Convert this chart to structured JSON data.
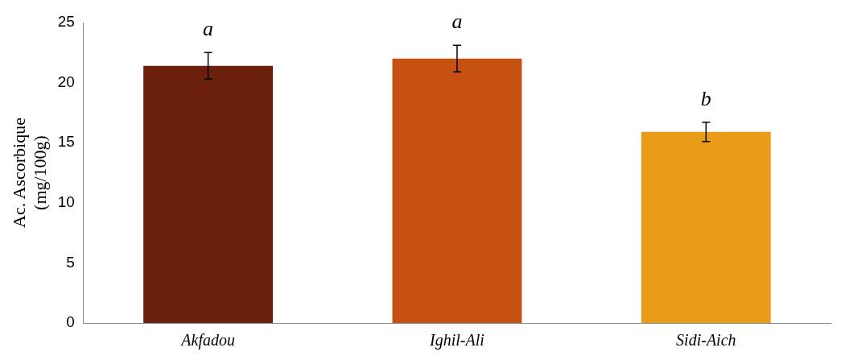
{
  "chart_data": {
    "type": "bar",
    "ylabel": "Ac. Ascorbique\n(mg/100g)",
    "categories": [
      "Akfadou",
      "Ighil-Ali",
      "Sidi-Aich"
    ],
    "values": [
      21.4,
      22.0,
      15.9
    ],
    "colors": [
      "#6b200c",
      "#c75112",
      "#e89c17"
    ],
    "errors": [
      1.1,
      1.1,
      0.8
    ],
    "ylim": [
      0,
      25
    ],
    "yticks": [
      0,
      5,
      10,
      15,
      20,
      25
    ],
    "grid": false,
    "legend": false,
    "annotations": [
      "a",
      "a",
      "b"
    ]
  }
}
